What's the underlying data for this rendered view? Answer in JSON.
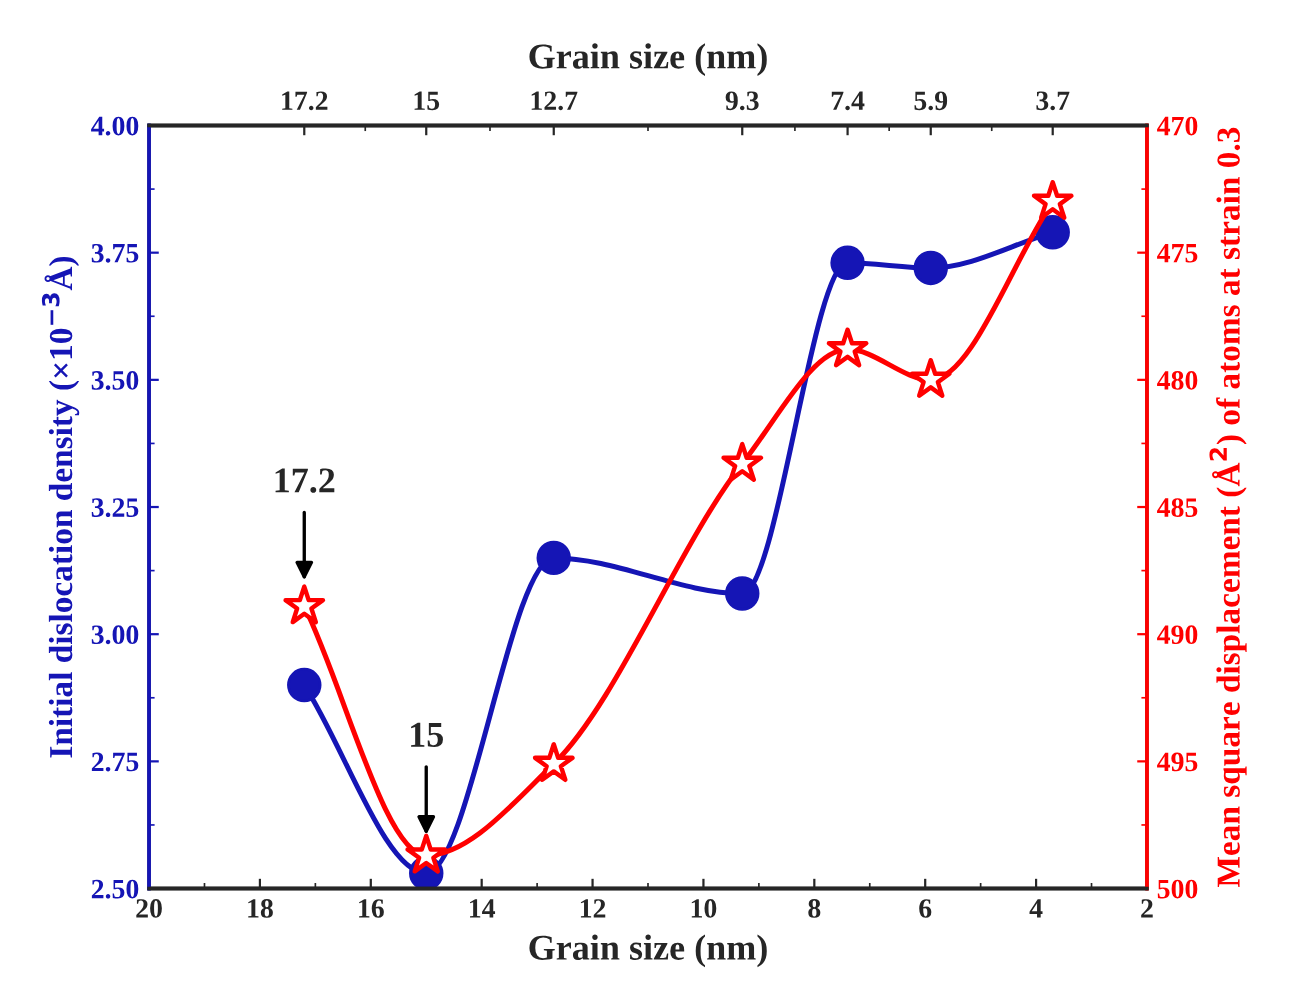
{
  "chart_data": {
    "type": "line",
    "xlabel": "Grain size (nm)",
    "ylabel": "Initial dislocation density (×10$^{−3}$Å)",
    "y2label": "Mean square displacement (Å$^{2}$) of atoms at strain 0.3",
    "x2label": "Grain size (nm)",
    "x": [
      17.2,
      15,
      12.7,
      9.3,
      7.4,
      5.9,
      3.7
    ],
    "series": [
      {
        "color": "#1515b5",
        "marker": "circle",
        "values": [
          2.9,
          2.53,
          3.15,
          3.08,
          3.73,
          3.72,
          3.79
        ]
      },
      {
        "color": "#ff0000",
        "marker": "star",
        "axis": "y2",
        "values": [
          488.9,
          498.7,
          495.1,
          483.3,
          478.8,
          480.0,
          473.0
        ]
      }
    ],
    "xlim": [
      20,
      2
    ],
    "xticks": [
      20,
      18,
      16,
      14,
      12,
      10,
      8,
      6,
      4,
      2
    ],
    "x2lim": [
      20,
      2
    ],
    "x2ticks": [
      17.2,
      15,
      12.7,
      9.3,
      7.4,
      5.9,
      3.7
    ],
    "ylim": [
      2.5,
      4.0
    ],
    "yticks": [
      {
        "value": 2.5,
        "label": "2.50"
      },
      {
        "value": 2.75,
        "label": "2.75"
      },
      {
        "value": 3.0,
        "label": "3.00"
      },
      {
        "value": 3.25,
        "label": "3.25"
      },
      {
        "value": 3.5,
        "label": "3.50"
      },
      {
        "value": 3.75,
        "label": "3.75"
      },
      {
        "value": 4.0,
        "label": "4.00"
      }
    ],
    "y2lim": [
      500,
      470
    ],
    "y2ticks": [
      500,
      495,
      490,
      485,
      480,
      475,
      470
    ],
    "annotations": [
      {
        "text": "17.2",
        "x": 17.2,
        "y": 3.1
      },
      {
        "text": "15",
        "x": 15,
        "y": 2.6
      }
    ],
    "grid": false,
    "legend": false
  }
}
